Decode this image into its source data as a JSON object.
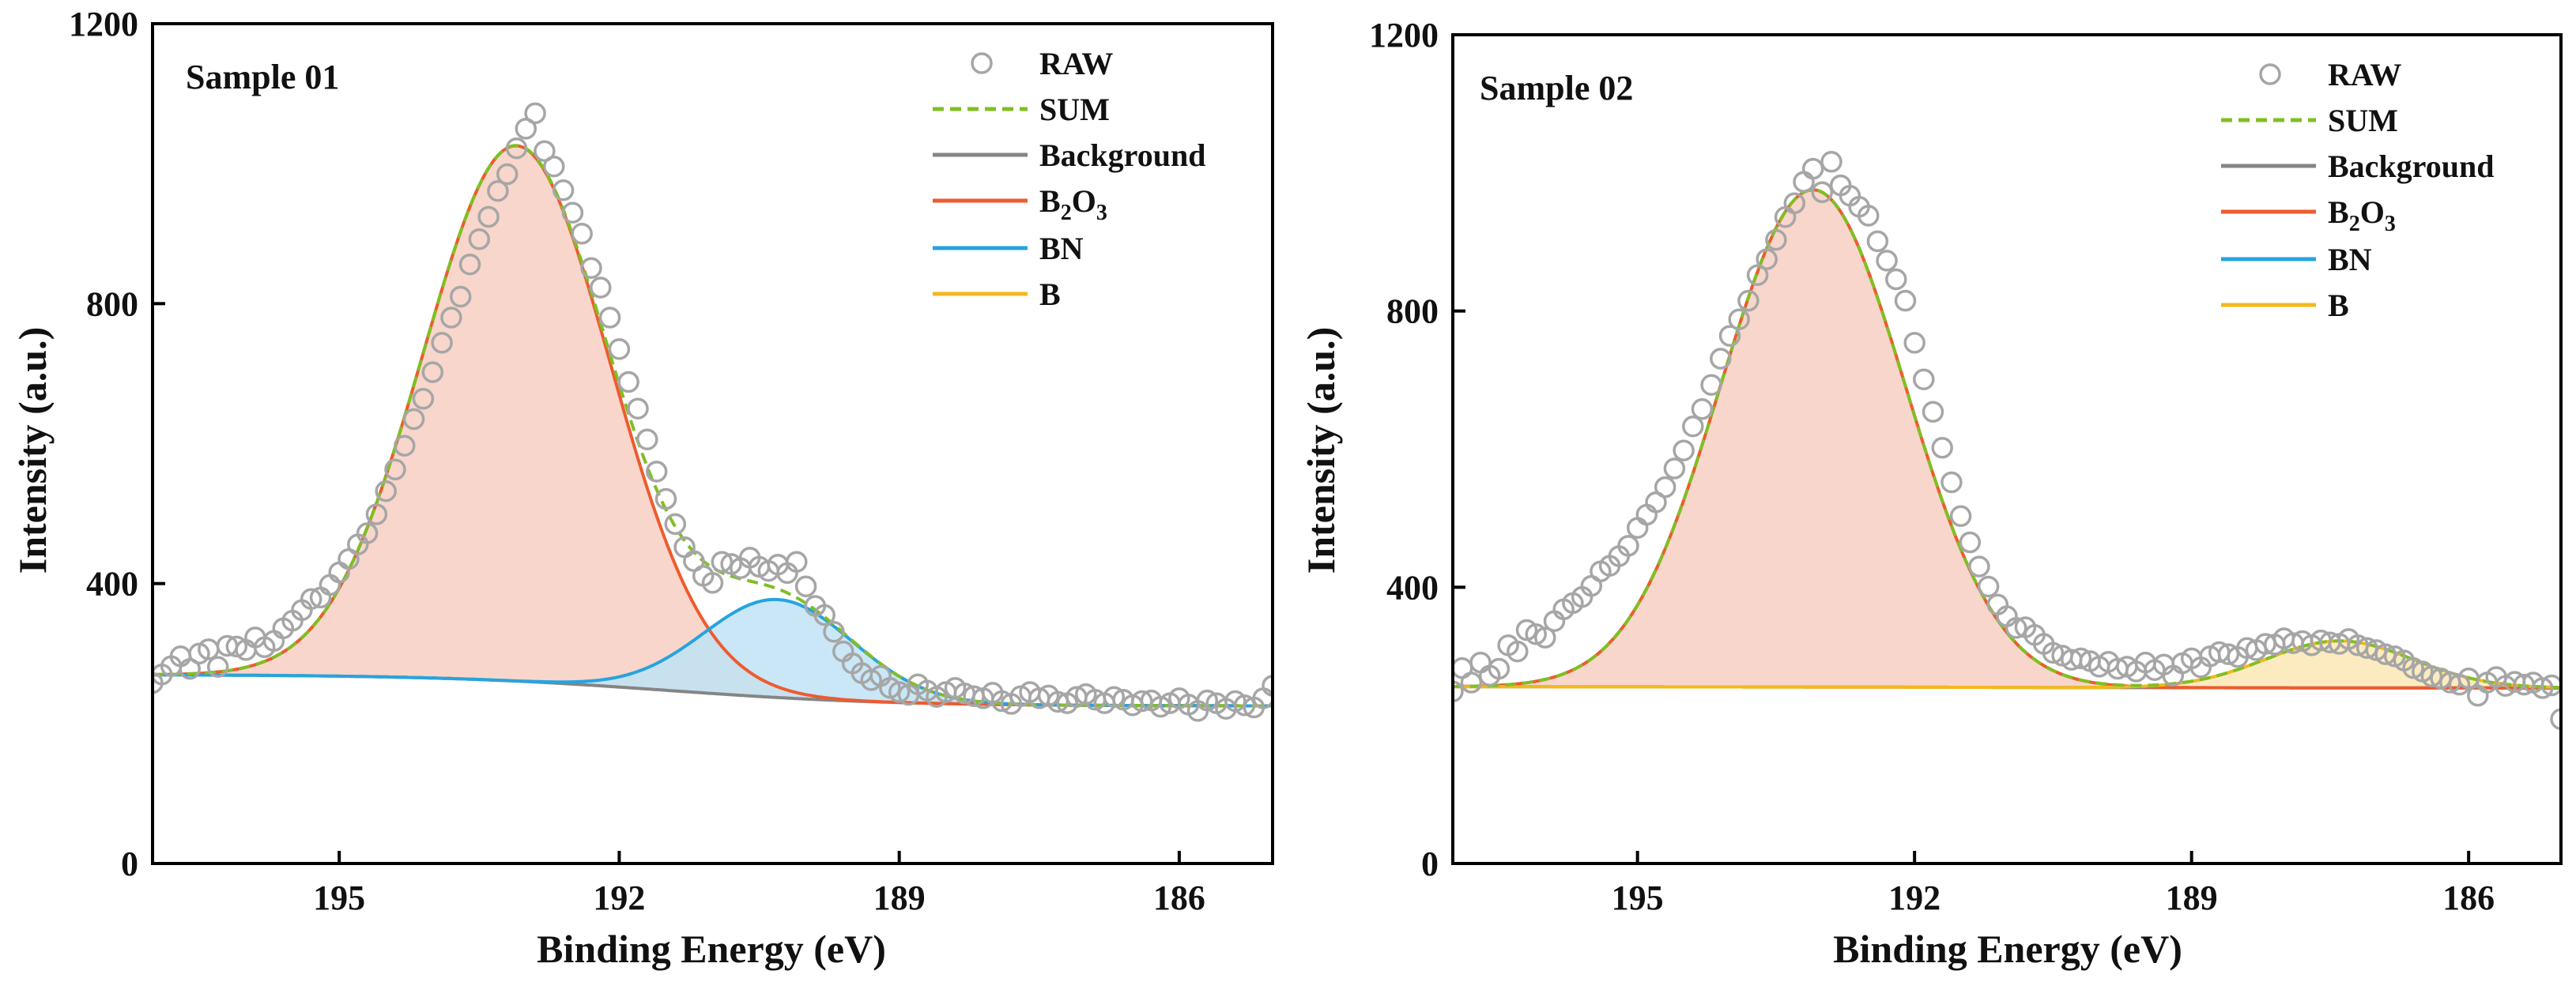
{
  "colors": {
    "raw": "#a6a6a6",
    "sum": "#80bf22",
    "background": "#858585",
    "b2o3": "#ee5b2f",
    "bn": "#27a3e0",
    "b": "#f3b81d",
    "b2o3_fill": "#f7cfc2",
    "bn_fill": "#bfe3f5",
    "b_fill": "#fbe8b5"
  },
  "chart_data": [
    {
      "type": "scatter",
      "panel": "left",
      "title": "",
      "sample_label": "Sample 01",
      "xlabel": "Binding Energy (eV)",
      "ylabel": "Intensity (a.u.)",
      "xlim": [
        197.0,
        185.0
      ],
      "ylim": [
        0,
        1200
      ],
      "x_ticks": [
        "195",
        "192",
        "189",
        "186"
      ],
      "y_ticks": [
        "0",
        "400",
        "800",
        "1200"
      ],
      "legend": {
        "position": "top-right",
        "entries": [
          {
            "key": "raw",
            "label": "RAW",
            "b2o3_label": false
          },
          {
            "key": "sum",
            "label": "SUM",
            "b2o3_label": false
          },
          {
            "key": "background",
            "label": "Background",
            "b2o3_label": false
          },
          {
            "key": "b2o3",
            "label": "B",
            "sub1": "2",
            "mid": "O",
            "sub2": "3",
            "b2o3_label": true
          },
          {
            "key": "bn",
            "label": "BN",
            "b2o3_label": false
          },
          {
            "key": "b",
            "label": "B",
            "b2o3_label": false
          }
        ]
      },
      "background": {
        "start": 270,
        "end": 225,
        "center": 191.5,
        "width": 1.2
      },
      "components": [
        {
          "key": "b2o3",
          "name": "B2O3",
          "center": 193.1,
          "amplitude": 765,
          "sigma": 1.0
        },
        {
          "key": "bn",
          "name": "BN",
          "center": 190.3,
          "amplitude": 140,
          "sigma": 0.8
        }
      ],
      "raw": [
        [
          197.0,
          258
        ],
        [
          196.9,
          270
        ],
        [
          196.8,
          282
        ],
        [
          196.7,
          296
        ],
        [
          196.6,
          278
        ],
        [
          196.5,
          300
        ],
        [
          196.4,
          306
        ],
        [
          196.3,
          281
        ],
        [
          196.2,
          311
        ],
        [
          196.1,
          310
        ],
        [
          196.0,
          305
        ],
        [
          195.9,
          323
        ],
        [
          195.8,
          309
        ],
        [
          195.7,
          318
        ],
        [
          195.6,
          336
        ],
        [
          195.5,
          347
        ],
        [
          195.4,
          362
        ],
        [
          195.3,
          378
        ],
        [
          195.2,
          380
        ],
        [
          195.1,
          398
        ],
        [
          195.0,
          416
        ],
        [
          194.9,
          435
        ],
        [
          194.8,
          456
        ],
        [
          194.7,
          472
        ],
        [
          194.6,
          499
        ],
        [
          194.5,
          532
        ],
        [
          194.4,
          563
        ],
        [
          194.3,
          597
        ],
        [
          194.2,
          635
        ],
        [
          194.1,
          664
        ],
        [
          194.0,
          702
        ],
        [
          193.9,
          744
        ],
        [
          193.8,
          780
        ],
        [
          193.7,
          810
        ],
        [
          193.6,
          856
        ],
        [
          193.5,
          892
        ],
        [
          193.4,
          924
        ],
        [
          193.3,
          961
        ],
        [
          193.2,
          985
        ],
        [
          193.1,
          1022
        ],
        [
          193.0,
          1050
        ],
        [
          192.9,
          1072
        ],
        [
          192.8,
          1018
        ],
        [
          192.7,
          996
        ],
        [
          192.6,
          962
        ],
        [
          192.5,
          930
        ],
        [
          192.4,
          900
        ],
        [
          192.3,
          851
        ],
        [
          192.2,
          823
        ],
        [
          192.1,
          780
        ],
        [
          192.0,
          735
        ],
        [
          191.9,
          688
        ],
        [
          191.8,
          650
        ],
        [
          191.7,
          606
        ],
        [
          191.6,
          560
        ],
        [
          191.5,
          521
        ],
        [
          191.4,
          485
        ],
        [
          191.3,
          452
        ],
        [
          191.2,
          432
        ],
        [
          191.1,
          411
        ],
        [
          191.0,
          401
        ],
        [
          190.9,
          431
        ],
        [
          190.8,
          428
        ],
        [
          190.7,
          422
        ],
        [
          190.6,
          437
        ],
        [
          190.5,
          424
        ],
        [
          190.4,
          418
        ],
        [
          190.3,
          427
        ],
        [
          190.2,
          415
        ],
        [
          190.1,
          431
        ],
        [
          190.0,
          396
        ],
        [
          189.9,
          368
        ],
        [
          189.8,
          355
        ],
        [
          189.7,
          331
        ],
        [
          189.6,
          303
        ],
        [
          189.5,
          286
        ],
        [
          189.4,
          272
        ],
        [
          189.3,
          262
        ],
        [
          189.2,
          268
        ],
        [
          189.1,
          251
        ],
        [
          189.0,
          245
        ],
        [
          188.9,
          241
        ],
        [
          188.8,
          256
        ],
        [
          188.7,
          247
        ],
        [
          188.6,
          238
        ],
        [
          188.5,
          245
        ],
        [
          188.4,
          251
        ],
        [
          188.3,
          243
        ],
        [
          188.2,
          239
        ],
        [
          188.1,
          236
        ],
        [
          188.0,
          244
        ],
        [
          187.9,
          232
        ],
        [
          187.8,
          228
        ],
        [
          187.7,
          239
        ],
        [
          187.6,
          245
        ],
        [
          187.5,
          236
        ],
        [
          187.4,
          240
        ],
        [
          187.3,
          231
        ],
        [
          187.2,
          229
        ],
        [
          187.1,
          238
        ],
        [
          187.0,
          242
        ],
        [
          186.9,
          234
        ],
        [
          186.8,
          229
        ],
        [
          186.7,
          238
        ],
        [
          186.6,
          234
        ],
        [
          186.5,
          226
        ],
        [
          186.4,
          232
        ],
        [
          186.3,
          233
        ],
        [
          186.2,
          224
        ],
        [
          186.1,
          229
        ],
        [
          186.0,
          236
        ],
        [
          185.9,
          227
        ],
        [
          185.8,
          218
        ],
        [
          185.7,
          233
        ],
        [
          185.6,
          229
        ],
        [
          185.5,
          221
        ],
        [
          185.4,
          232
        ],
        [
          185.3,
          226
        ],
        [
          185.2,
          223
        ],
        [
          185.1,
          236
        ],
        [
          185.0,
          254
        ]
      ]
    },
    {
      "type": "scatter",
      "panel": "right",
      "title": "",
      "sample_label": "Sample 02",
      "xlabel": "Binding Energy (eV)",
      "ylabel": "Intensity (a.u.)",
      "xlim": [
        197.0,
        185.0
      ],
      "ylim": [
        0,
        1200
      ],
      "x_ticks": [
        "195",
        "192",
        "189",
        "186"
      ],
      "y_ticks": [
        "0",
        "400",
        "800",
        "1200"
      ],
      "legend": {
        "position": "top-right",
        "entries": [
          {
            "key": "raw",
            "label": "RAW",
            "b2o3_label": false
          },
          {
            "key": "sum",
            "label": "SUM",
            "b2o3_label": false
          },
          {
            "key": "background",
            "label": "Background",
            "b2o3_label": false
          },
          {
            "key": "b2o3",
            "label": "B",
            "sub1": "2",
            "mid": "O",
            "sub2": "3",
            "b2o3_label": true
          },
          {
            "key": "bn",
            "label": "BN",
            "b2o3_label": false
          },
          {
            "key": "b",
            "label": "B",
            "b2o3_label": false
          }
        ]
      },
      "background": {
        "start": 256,
        "end": 254,
        "center": 191.0,
        "width": 2.0
      },
      "components": [
        {
          "key": "b2o3",
          "name": "B2O3",
          "center": 193.1,
          "amplitude": 720,
          "sigma": 1.0
        },
        {
          "key": "b",
          "name": "B",
          "center": 187.4,
          "amplitude": 68,
          "sigma": 0.8
        }
      ],
      "raw": [
        [
          197.0,
          249
        ],
        [
          196.9,
          283
        ],
        [
          196.8,
          262
        ],
        [
          196.7,
          291
        ],
        [
          196.6,
          272
        ],
        [
          196.5,
          282
        ],
        [
          196.4,
          316
        ],
        [
          196.3,
          307
        ],
        [
          196.2,
          338
        ],
        [
          196.1,
          332
        ],
        [
          196.0,
          327
        ],
        [
          195.9,
          351
        ],
        [
          195.8,
          368
        ],
        [
          195.7,
          377
        ],
        [
          195.6,
          386
        ],
        [
          195.5,
          402
        ],
        [
          195.4,
          423
        ],
        [
          195.3,
          431
        ],
        [
          195.2,
          445
        ],
        [
          195.1,
          460
        ],
        [
          195.0,
          486
        ],
        [
          194.9,
          505
        ],
        [
          194.8,
          523
        ],
        [
          194.7,
          545
        ],
        [
          194.6,
          572
        ],
        [
          194.5,
          598
        ],
        [
          194.4,
          633
        ],
        [
          194.3,
          658
        ],
        [
          194.2,
          693
        ],
        [
          194.1,
          731
        ],
        [
          194.0,
          764
        ],
        [
          193.9,
          788
        ],
        [
          193.8,
          815
        ],
        [
          193.7,
          852
        ],
        [
          193.6,
          875
        ],
        [
          193.5,
          903
        ],
        [
          193.4,
          936
        ],
        [
          193.3,
          956
        ],
        [
          193.2,
          987
        ],
        [
          193.1,
          1006
        ],
        [
          193.0,
          972
        ],
        [
          192.9,
          1016
        ],
        [
          192.8,
          982
        ],
        [
          192.7,
          967
        ],
        [
          192.6,
          951
        ],
        [
          192.5,
          938
        ],
        [
          192.4,
          901
        ],
        [
          192.3,
          873
        ],
        [
          192.2,
          846
        ],
        [
          192.1,
          815
        ],
        [
          192.0,
          754
        ],
        [
          191.9,
          701
        ],
        [
          191.8,
          654
        ],
        [
          191.7,
          602
        ],
        [
          191.6,
          552
        ],
        [
          191.5,
          503
        ],
        [
          191.4,
          465
        ],
        [
          191.3,
          430
        ],
        [
          191.2,
          401
        ],
        [
          191.1,
          375
        ],
        [
          191.0,
          358
        ],
        [
          190.9,
          341
        ],
        [
          190.8,
          342
        ],
        [
          190.7,
          331
        ],
        [
          190.6,
          318
        ],
        [
          190.5,
          305
        ],
        [
          190.4,
          301
        ],
        [
          190.3,
          295
        ],
        [
          190.2,
          297
        ],
        [
          190.1,
          293
        ],
        [
          190.0,
          285
        ],
        [
          189.9,
          292
        ],
        [
          189.8,
          282
        ],
        [
          189.7,
          285
        ],
        [
          189.6,
          278
        ],
        [
          189.5,
          291
        ],
        [
          189.4,
          280
        ],
        [
          189.3,
          288
        ],
        [
          189.2,
          272
        ],
        [
          189.1,
          290
        ],
        [
          189.0,
          297
        ],
        [
          188.9,
          284
        ],
        [
          188.8,
          300
        ],
        [
          188.7,
          306
        ],
        [
          188.6,
          303
        ],
        [
          188.5,
          299
        ],
        [
          188.4,
          312
        ],
        [
          188.3,
          309
        ],
        [
          188.2,
          318
        ],
        [
          188.1,
          317
        ],
        [
          188.0,
          326
        ],
        [
          187.9,
          319
        ],
        [
          187.8,
          322
        ],
        [
          187.7,
          316
        ],
        [
          187.6,
          323
        ],
        [
          187.5,
          320
        ],
        [
          187.4,
          318
        ],
        [
          187.3,
          325
        ],
        [
          187.2,
          316
        ],
        [
          187.1,
          312
        ],
        [
          187.0,
          309
        ],
        [
          186.9,
          303
        ],
        [
          186.8,
          300
        ],
        [
          186.7,
          294
        ],
        [
          186.6,
          283
        ],
        [
          186.5,
          278
        ],
        [
          186.4,
          271
        ],
        [
          186.3,
          268
        ],
        [
          186.2,
          262
        ],
        [
          186.1,
          259
        ],
        [
          186.0,
          268
        ],
        [
          185.9,
          243
        ],
        [
          185.8,
          262
        ],
        [
          185.7,
          270
        ],
        [
          185.6,
          257
        ],
        [
          185.5,
          263
        ],
        [
          185.4,
          259
        ],
        [
          185.3,
          262
        ],
        [
          185.2,
          254
        ],
        [
          185.1,
          258
        ],
        [
          185.0,
          209
        ]
      ]
    }
  ]
}
